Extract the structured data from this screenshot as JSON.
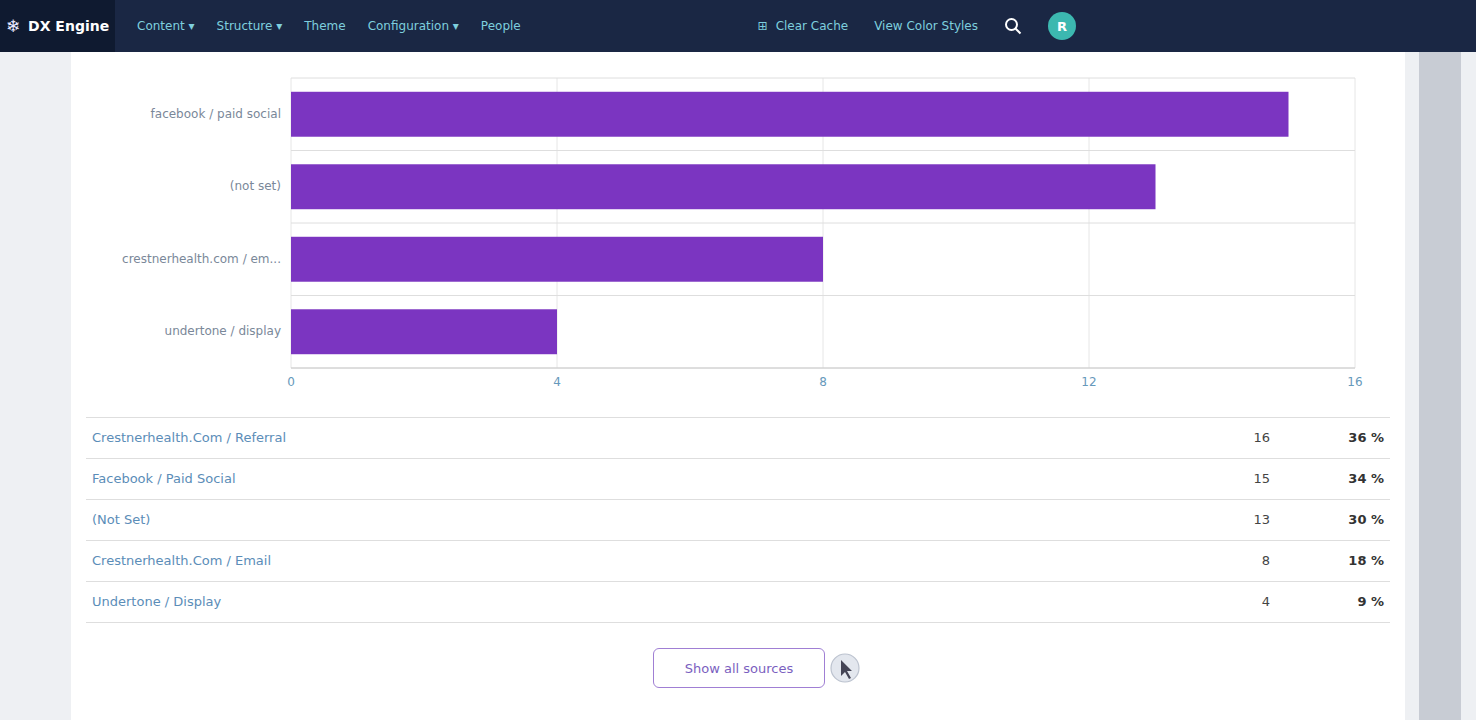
{
  "chart_data": {
    "type": "bar",
    "orientation": "horizontal",
    "categories": [
      "undertone / display",
      "crestnerhealth.com / em...",
      "(not set)",
      "facebook / paid social"
    ],
    "values": [
      4,
      8,
      13,
      15
    ],
    "color": "#7b35c1",
    "xlim": [
      0,
      16
    ],
    "xticks": [
      0,
      4,
      8,
      12,
      16
    ],
    "grid": true
  },
  "table": {
    "labels": [
      "Crestnerhealth.Com / Referral",
      "Facebook / Paid Social",
      "(Not Set)",
      "Crestnerhealth.Com / Email",
      "Undertone / Display"
    ],
    "values": [
      16,
      15,
      13,
      8,
      4
    ],
    "shares": [
      36,
      34,
      30,
      18,
      9
    ],
    "share_labels": [
      "36 %",
      "34 %",
      "30 %",
      "18 %",
      "9 %"
    ]
  },
  "nav": {
    "title": "DX Engine",
    "logo_icon": "❄",
    "items": [
      "Content ▾",
      "Structure ▾",
      "Theme",
      "Configuration ▾",
      "People"
    ],
    "right_items": [
      "Clear Cache",
      "View Color Styles"
    ],
    "right_icon": "⊞",
    "avatar": "R"
  },
  "button_text": "Show all sources"
}
